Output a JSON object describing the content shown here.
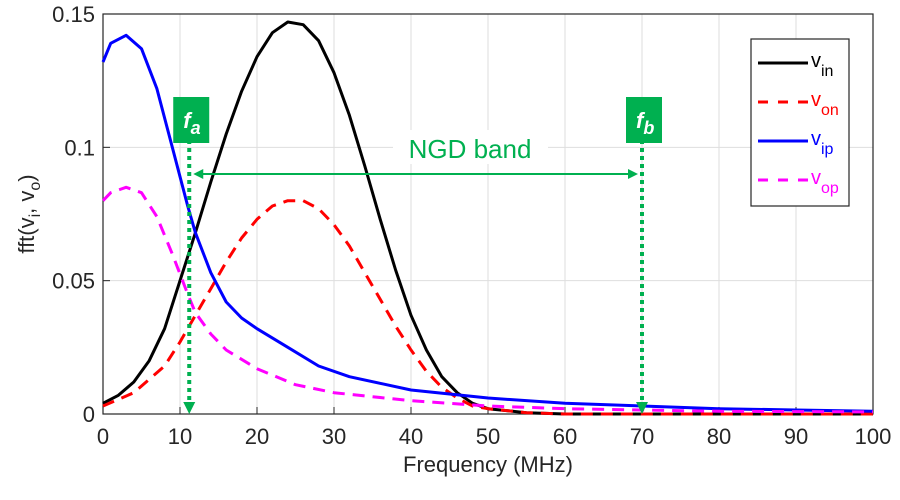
{
  "chart_data": {
    "type": "line",
    "xlabel": "Frequency (MHz)",
    "ylabel": "fft(v",
    "ylabel_sub_i": "i",
    "ylabel_mid": ", v",
    "ylabel_sub_o": "o",
    "ylabel_end": ")",
    "xlim": [
      0,
      100
    ],
    "ylim": [
      0,
      0.15
    ],
    "xticks": [
      "0",
      "10",
      "20",
      "30",
      "40",
      "50",
      "60",
      "70",
      "80",
      "90",
      "100"
    ],
    "yticks": [
      "0",
      "0.05",
      "0.1",
      "0.15"
    ],
    "grid": true,
    "legend_placement": "top-right",
    "series": [
      {
        "name": "v",
        "sub": "in",
        "color": "#000000",
        "dash": false,
        "x": [
          0,
          2,
          4,
          6,
          8,
          10,
          12,
          14,
          16,
          18,
          20,
          22,
          24,
          26,
          28,
          30,
          32,
          34,
          36,
          38,
          40,
          42,
          44,
          46,
          48,
          50,
          55,
          60,
          100
        ],
        "y": [
          0.004,
          0.007,
          0.012,
          0.02,
          0.032,
          0.05,
          0.068,
          0.087,
          0.105,
          0.121,
          0.134,
          0.143,
          0.147,
          0.146,
          0.14,
          0.128,
          0.112,
          0.093,
          0.073,
          0.054,
          0.037,
          0.024,
          0.014,
          0.008,
          0.004,
          0.002,
          0.0005,
          0,
          0
        ]
      },
      {
        "name": "v",
        "sub": "on",
        "color": "#ff0000",
        "dash": true,
        "x": [
          0,
          4,
          8,
          10,
          12,
          14,
          16,
          18,
          20,
          22,
          24,
          26,
          28,
          30,
          32,
          34,
          36,
          38,
          40,
          42,
          44,
          46,
          48,
          50,
          55,
          60,
          100
        ],
        "y": [
          0.003,
          0.008,
          0.018,
          0.027,
          0.037,
          0.047,
          0.057,
          0.066,
          0.073,
          0.078,
          0.08,
          0.08,
          0.077,
          0.071,
          0.063,
          0.053,
          0.043,
          0.033,
          0.024,
          0.016,
          0.01,
          0.006,
          0.003,
          0.002,
          0.0005,
          0,
          0
        ]
      },
      {
        "name": "v",
        "sub": "ip",
        "color": "#0000ff",
        "dash": false,
        "x": [
          0,
          1,
          3,
          5,
          7,
          9,
          11,
          12,
          14,
          16,
          18,
          20,
          24,
          28,
          32,
          40,
          50,
          60,
          70,
          80,
          90,
          100
        ],
        "y": [
          0.132,
          0.139,
          0.142,
          0.137,
          0.122,
          0.1,
          0.078,
          0.068,
          0.053,
          0.042,
          0.036,
          0.032,
          0.025,
          0.018,
          0.014,
          0.009,
          0.006,
          0.004,
          0.003,
          0.002,
          0.0015,
          0.001
        ]
      },
      {
        "name": "v",
        "sub": "op",
        "color": "#ff00ff",
        "dash": true,
        "x": [
          0,
          1,
          3,
          5,
          7,
          9,
          11,
          12,
          14,
          16,
          20,
          25,
          30,
          40,
          50,
          60,
          70,
          80,
          100
        ],
        "y": [
          0.08,
          0.083,
          0.085,
          0.083,
          0.074,
          0.06,
          0.045,
          0.038,
          0.03,
          0.024,
          0.017,
          0.011,
          0.008,
          0.005,
          0.003,
          0.002,
          0.0015,
          0.001,
          0.0008
        ]
      }
    ],
    "annotations": {
      "fa": {
        "label": "f",
        "sub": "a",
        "x": 11.2
      },
      "fb": {
        "label": "f",
        "sub": "b",
        "x": 70
      },
      "band": {
        "label": "NGD band",
        "y": 0.09
      },
      "color": "#00b050"
    }
  }
}
